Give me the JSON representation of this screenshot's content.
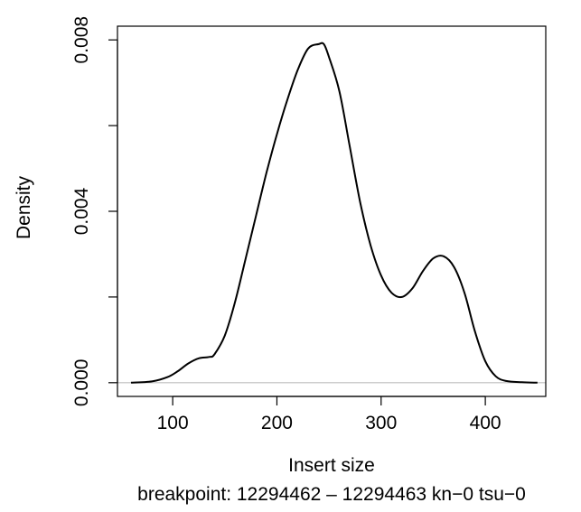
{
  "chart_data": {
    "type": "line",
    "title": "",
    "xlabel": "Insert size",
    "sublabel": "breakpoint: 12294462 – 12294463 kn−0 tsu−0",
    "ylabel": "Density",
    "xlim": [
      47,
      458
    ],
    "ylim": [
      -0.00032,
      0.00832
    ],
    "x_ticks": [
      100,
      200,
      300,
      400
    ],
    "y_ticks": [
      0.0,
      0.004,
      0.008
    ],
    "y_tick_labels": [
      "0.000",
      "0.004",
      "0.008"
    ],
    "y_minor_ticks": [
      0.002,
      0.006
    ],
    "zero_line": 0,
    "grid": false,
    "series": [
      {
        "color": "#000000",
        "x": [
          60,
          80,
          95,
          105,
          115,
          125,
          135,
          140,
          150,
          160,
          170,
          180,
          190,
          200,
          210,
          220,
          230,
          240,
          245,
          250,
          260,
          270,
          280,
          290,
          300,
          310,
          320,
          330,
          340,
          350,
          360,
          370,
          380,
          390,
          400,
          410,
          420,
          435,
          450
        ],
        "y": [
          0.0,
          3e-05,
          0.00013,
          0.00027,
          0.00045,
          0.00057,
          0.0006,
          0.00066,
          0.0011,
          0.0019,
          0.0029,
          0.0039,
          0.0049,
          0.0058,
          0.0066,
          0.0073,
          0.0078,
          0.0079,
          0.0079,
          0.0076,
          0.0068,
          0.0055,
          0.0042,
          0.0032,
          0.0025,
          0.0021,
          0.002,
          0.0022,
          0.0026,
          0.0029,
          0.00295,
          0.0027,
          0.0021,
          0.0012,
          0.0005,
          0.00015,
          4e-05,
          1e-05,
          0.0
        ]
      }
    ]
  }
}
